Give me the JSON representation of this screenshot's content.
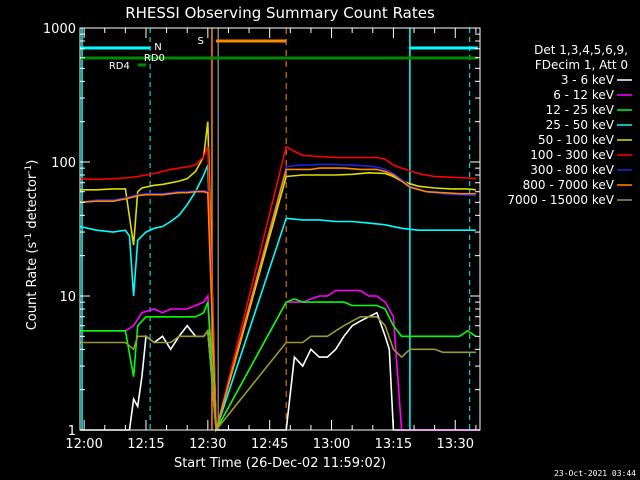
{
  "chart_data": {
    "type": "line",
    "title": "RHESSI Observing Summary Count Rates",
    "xlabel": "Start Time (26-Dec-02 11:59:02)",
    "ylabel_main": "Count Rate (s",
    "ylabel_sup1": "-1",
    "ylabel_mid": " detector",
    "ylabel_sup2": "-1",
    "ylabel_end": ")",
    "yscale": "log",
    "xlim": [
      0,
      97
    ],
    "ylim": [
      1,
      1000
    ],
    "x_ticks": [
      {
        "v": 1,
        "label": "12:00"
      },
      {
        "v": 16,
        "label": "12:15"
      },
      {
        "v": 31,
        "label": "12:30"
      },
      {
        "v": 46,
        "label": "12:45"
      },
      {
        "v": 61,
        "label": "13:00"
      },
      {
        "v": 76,
        "label": "13:15"
      },
      {
        "v": 91,
        "label": "13:30"
      }
    ],
    "y_ticks": [
      {
        "v": 1,
        "label": "1"
      },
      {
        "v": 10,
        "label": "10"
      },
      {
        "v": 100,
        "label": "100"
      },
      {
        "v": 1000,
        "label": "1000"
      }
    ],
    "legend_header": [
      "Det 1,3,4,5,6,9,",
      "FDecim 1, Att 0"
    ],
    "series": [
      {
        "name": "3 - 6 keV",
        "color": "#ffffff",
        "values": [
          [
            0,
            1.0
          ],
          [
            12,
            1.0
          ],
          [
            13,
            1.7
          ],
          [
            14,
            1.5
          ],
          [
            15,
            2.5
          ],
          [
            16,
            5
          ],
          [
            18,
            4.5
          ],
          [
            20,
            5
          ],
          [
            22,
            4
          ],
          [
            24,
            5
          ],
          [
            26,
            6
          ],
          [
            28,
            5
          ],
          [
            30,
            5
          ],
          [
            31,
            5.5
          ],
          [
            33,
            1.0
          ],
          [
            50,
            1.0
          ],
          [
            52,
            3.5
          ],
          [
            54,
            3
          ],
          [
            56,
            4
          ],
          [
            58,
            3.5
          ],
          [
            60,
            3.5
          ],
          [
            62,
            4
          ],
          [
            64,
            5
          ],
          [
            66,
            6
          ],
          [
            68,
            6.5
          ],
          [
            70,
            7
          ],
          [
            72,
            7.5
          ],
          [
            74,
            5
          ],
          [
            75,
            4
          ],
          [
            76,
            1.0
          ],
          [
            97,
            1.0
          ]
        ]
      },
      {
        "name": "6 - 12 keV",
        "color": "#ff00ff",
        "values": [
          [
            0,
            5.5
          ],
          [
            10,
            5.5
          ],
          [
            11,
            5.5
          ],
          [
            13,
            6
          ],
          [
            15,
            7.5
          ],
          [
            18,
            8
          ],
          [
            20,
            7.5
          ],
          [
            22,
            8
          ],
          [
            24,
            8
          ],
          [
            26,
            8
          ],
          [
            28,
            8.5
          ],
          [
            30,
            9
          ],
          [
            31,
            10
          ],
          [
            33,
            1.0
          ],
          [
            50,
            9
          ],
          [
            52,
            9
          ],
          [
            54,
            9
          ],
          [
            56,
            9.5
          ],
          [
            58,
            10
          ],
          [
            60,
            10
          ],
          [
            62,
            11
          ],
          [
            64,
            11
          ],
          [
            66,
            11
          ],
          [
            68,
            11
          ],
          [
            70,
            10
          ],
          [
            72,
            10
          ],
          [
            74,
            9
          ],
          [
            76,
            7
          ],
          [
            78,
            1.0
          ],
          [
            97,
            1.0
          ]
        ]
      },
      {
        "name": "12 - 25 keV",
        "color": "#00ff00",
        "values": [
          [
            0,
            5.5
          ],
          [
            4,
            5.5
          ],
          [
            8,
            5.5
          ],
          [
            11,
            5.5
          ],
          [
            13,
            2.5
          ],
          [
            14,
            6
          ],
          [
            16,
            7
          ],
          [
            18,
            7
          ],
          [
            20,
            7
          ],
          [
            22,
            7
          ],
          [
            24,
            7
          ],
          [
            26,
            7
          ],
          [
            28,
            7
          ],
          [
            30,
            7.5
          ],
          [
            31,
            9
          ],
          [
            33,
            1.0
          ],
          [
            50,
            9
          ],
          [
            52,
            9.5
          ],
          [
            54,
            9
          ],
          [
            56,
            9
          ],
          [
            58,
            9
          ],
          [
            60,
            9
          ],
          [
            62,
            9
          ],
          [
            64,
            9
          ],
          [
            66,
            8.5
          ],
          [
            68,
            8.5
          ],
          [
            70,
            8.5
          ],
          [
            72,
            8.5
          ],
          [
            74,
            8
          ],
          [
            76,
            6
          ],
          [
            78,
            5
          ],
          [
            80,
            5
          ],
          [
            82,
            5
          ],
          [
            84,
            5
          ],
          [
            86,
            5
          ],
          [
            88,
            5
          ],
          [
            90,
            5
          ],
          [
            92,
            5
          ],
          [
            94,
            5.5
          ],
          [
            96,
            5
          ]
        ]
      },
      {
        "name": "25 - 50 keV",
        "color": "#00ffff",
        "values": [
          [
            0,
            33
          ],
          [
            4,
            31
          ],
          [
            8,
            30
          ],
          [
            11,
            31
          ],
          [
            12,
            28
          ],
          [
            13,
            10
          ],
          [
            14,
            26
          ],
          [
            15,
            28
          ],
          [
            16,
            30
          ],
          [
            18,
            32
          ],
          [
            20,
            33
          ],
          [
            22,
            36
          ],
          [
            24,
            40
          ],
          [
            26,
            48
          ],
          [
            28,
            60
          ],
          [
            30,
            80
          ],
          [
            31,
            95
          ],
          [
            33,
            1.0
          ],
          [
            50,
            38
          ],
          [
            54,
            37
          ],
          [
            58,
            37
          ],
          [
            62,
            36
          ],
          [
            66,
            36
          ],
          [
            70,
            35
          ],
          [
            74,
            34
          ],
          [
            78,
            32
          ],
          [
            82,
            31
          ],
          [
            86,
            31
          ],
          [
            90,
            31
          ],
          [
            94,
            31
          ],
          [
            96,
            31
          ]
        ]
      },
      {
        "name": "50 - 100 keV",
        "color": "#dddd00",
        "values": [
          [
            0,
            62
          ],
          [
            4,
            62
          ],
          [
            8,
            63
          ],
          [
            11,
            63
          ],
          [
            13,
            24
          ],
          [
            14,
            60
          ],
          [
            15,
            64
          ],
          [
            18,
            67
          ],
          [
            20,
            68
          ],
          [
            22,
            70
          ],
          [
            24,
            72
          ],
          [
            26,
            75
          ],
          [
            28,
            85
          ],
          [
            30,
            110
          ],
          [
            31,
            200
          ],
          [
            33,
            1.0
          ],
          [
            50,
            78
          ],
          [
            54,
            80
          ],
          [
            58,
            80
          ],
          [
            62,
            80
          ],
          [
            66,
            81
          ],
          [
            70,
            83
          ],
          [
            74,
            82
          ],
          [
            76,
            78
          ],
          [
            78,
            72
          ],
          [
            82,
            66
          ],
          [
            86,
            64
          ],
          [
            90,
            63
          ],
          [
            94,
            63
          ],
          [
            96,
            62
          ]
        ]
      },
      {
        "name": "100 - 300 keV",
        "color": "#ff0000",
        "values": [
          [
            0,
            75
          ],
          [
            4,
            74
          ],
          [
            8,
            75
          ],
          [
            11,
            76
          ],
          [
            14,
            78
          ],
          [
            18,
            82
          ],
          [
            20,
            85
          ],
          [
            22,
            88
          ],
          [
            24,
            90
          ],
          [
            26,
            92
          ],
          [
            28,
            95
          ],
          [
            30,
            110
          ],
          [
            31,
            130
          ],
          [
            33,
            1.0
          ],
          [
            50,
            130
          ],
          [
            52,
            120
          ],
          [
            54,
            112
          ],
          [
            58,
            110
          ],
          [
            62,
            108
          ],
          [
            66,
            108
          ],
          [
            70,
            108
          ],
          [
            72,
            108
          ],
          [
            74,
            105
          ],
          [
            76,
            95
          ],
          [
            78,
            90
          ],
          [
            82,
            82
          ],
          [
            86,
            78
          ],
          [
            90,
            77
          ],
          [
            94,
            76
          ],
          [
            96,
            75
          ]
        ]
      },
      {
        "name": "300 - 800 keV",
        "color": "#2222dd",
        "values": [
          [
            0,
            50
          ],
          [
            4,
            52
          ],
          [
            8,
            52
          ],
          [
            11,
            54
          ],
          [
            13,
            56
          ],
          [
            14,
            57
          ],
          [
            16,
            58
          ],
          [
            18,
            58
          ],
          [
            20,
            58
          ],
          [
            22,
            59
          ],
          [
            24,
            60
          ],
          [
            26,
            60
          ],
          [
            28,
            61
          ],
          [
            30,
            61
          ],
          [
            31,
            60
          ],
          [
            33,
            1.0
          ],
          [
            50,
            92
          ],
          [
            52,
            94
          ],
          [
            54,
            95
          ],
          [
            56,
            95
          ],
          [
            58,
            96
          ],
          [
            60,
            96
          ],
          [
            62,
            96
          ],
          [
            64,
            95
          ],
          [
            66,
            95
          ],
          [
            68,
            94
          ],
          [
            70,
            93
          ],
          [
            72,
            92
          ],
          [
            74,
            88
          ],
          [
            76,
            82
          ],
          [
            78,
            74
          ],
          [
            80,
            66
          ],
          [
            84,
            60
          ],
          [
            88,
            58
          ],
          [
            92,
            57
          ],
          [
            96,
            56
          ]
        ]
      },
      {
        "name": "800 - 7000 keV",
        "color": "#ff8800",
        "values": [
          [
            0,
            50
          ],
          [
            4,
            51
          ],
          [
            8,
            51
          ],
          [
            11,
            53
          ],
          [
            13,
            55
          ],
          [
            14,
            56
          ],
          [
            16,
            57
          ],
          [
            18,
            57
          ],
          [
            20,
            57
          ],
          [
            22,
            58
          ],
          [
            24,
            59
          ],
          [
            26,
            59
          ],
          [
            28,
            60
          ],
          [
            30,
            60
          ],
          [
            31,
            59
          ],
          [
            33,
            1.0
          ],
          [
            50,
            88
          ],
          [
            52,
            88
          ],
          [
            54,
            88
          ],
          [
            56,
            88
          ],
          [
            58,
            90
          ],
          [
            60,
            90
          ],
          [
            62,
            90
          ],
          [
            64,
            90
          ],
          [
            66,
            89
          ],
          [
            68,
            88
          ],
          [
            70,
            88
          ],
          [
            72,
            88
          ],
          [
            74,
            85
          ],
          [
            76,
            80
          ],
          [
            78,
            72
          ],
          [
            80,
            65
          ],
          [
            84,
            60
          ],
          [
            88,
            59
          ],
          [
            92,
            58
          ],
          [
            96,
            58
          ]
        ]
      },
      {
        "name": "7000 - 15000 keV",
        "color": "#999933",
        "values": [
          [
            0,
            4.5
          ],
          [
            4,
            4.5
          ],
          [
            8,
            4.5
          ],
          [
            11,
            4.5
          ],
          [
            13,
            4
          ],
          [
            14,
            5
          ],
          [
            16,
            5
          ],
          [
            18,
            4.5
          ],
          [
            20,
            4.5
          ],
          [
            22,
            4.5
          ],
          [
            24,
            5
          ],
          [
            26,
            5
          ],
          [
            28,
            5
          ],
          [
            30,
            5
          ],
          [
            31,
            5.5
          ],
          [
            33,
            1.0
          ],
          [
            50,
            4.5
          ],
          [
            52,
            4.5
          ],
          [
            54,
            4.5
          ],
          [
            56,
            5
          ],
          [
            58,
            5
          ],
          [
            60,
            5
          ],
          [
            62,
            5.5
          ],
          [
            64,
            6
          ],
          [
            66,
            6.5
          ],
          [
            68,
            7
          ],
          [
            70,
            7
          ],
          [
            72,
            7
          ],
          [
            74,
            6
          ],
          [
            76,
            4
          ],
          [
            78,
            3.5
          ],
          [
            80,
            4
          ],
          [
            82,
            4
          ],
          [
            84,
            4
          ],
          [
            86,
            4
          ],
          [
            88,
            3.8
          ],
          [
            90,
            3.8
          ],
          [
            92,
            3.8
          ],
          [
            94,
            3.8
          ],
          [
            96,
            3.8
          ]
        ]
      }
    ],
    "annotations": {
      "N": "N",
      "RD0": "RD0",
      "RD4": "RD4",
      "S": "S"
    },
    "colors": {
      "cyan": "#00ffff",
      "green": "#008800",
      "orange": "#ff8800",
      "white": "#ffffff"
    },
    "timestamp": "23-Oct-2021 03:44"
  }
}
